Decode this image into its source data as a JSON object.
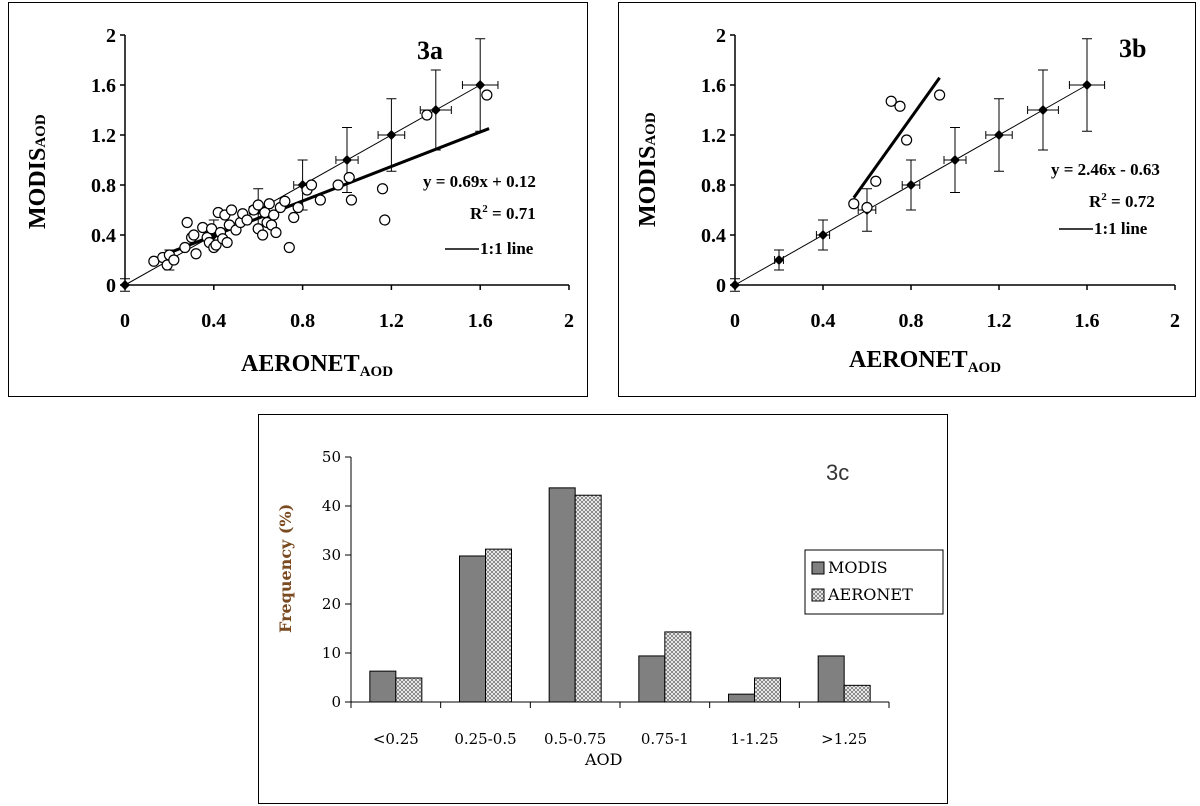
{
  "panel_a": {
    "label": "3a",
    "equation": "y = 0.69x + 0.12",
    "r2_base": "R",
    "r2_sup": "2",
    "r2_rest": " = 0.71",
    "legend_line": "1:1 line",
    "ylabel_main": "MODIS",
    "ylabel_sub": "AOD",
    "xlabel_main": "AERONET",
    "xlabel_sub": "AOD"
  },
  "panel_b": {
    "label": "3b",
    "equation": "y = 2.46x - 0.63",
    "r2_base": "R",
    "r2_sup": "2",
    "r2_rest": " = 0.72",
    "legend_line": "1:1 line",
    "ylabel_main": "MODIS",
    "ylabel_sub": "AOD",
    "xlabel_main": "AERONET",
    "xlabel_sub": "AOD"
  },
  "panel_c": {
    "label": "3c",
    "ylabel": "Frequency (%)",
    "xlabel": "AOD",
    "legend": [
      "MODIS",
      "AERONET"
    ]
  },
  "colors": {
    "modis_bar": "#808080",
    "aeronet_bar": "#d8d8d8",
    "ylabel_c": "#7a4a20"
  },
  "chart_data": [
    {
      "type": "scatter",
      "title": "3a",
      "xlabel": "AERONET AOD",
      "ylabel": "MODIS AOD",
      "xlim": [
        0,
        2
      ],
      "ylim": [
        0,
        2
      ],
      "xticks": [
        "0",
        "0.4",
        "0.8",
        "1.2",
        "1.6",
        "2"
      ],
      "yticks": [
        "0",
        "0.4",
        "0.8",
        "1.2",
        "1.6",
        "2"
      ],
      "series": [
        {
          "name": "1:1 line",
          "kind": "line_with_error_bars",
          "points": [
            [
              0,
              0
            ],
            [
              0.2,
              0.2
            ],
            [
              0.4,
              0.4
            ],
            [
              0.6,
              0.6
            ],
            [
              0.8,
              0.8
            ],
            [
              1.0,
              1.0
            ],
            [
              1.2,
              1.2
            ],
            [
              1.4,
              1.4
            ],
            [
              1.6,
              1.6
            ]
          ],
          "yerr": [
            0.05,
            0.08,
            0.12,
            0.17,
            0.2,
            0.26,
            0.29,
            0.32,
            0.37
          ],
          "xerr": [
            0,
            0.02,
            0.03,
            0.04,
            0.04,
            0.05,
            0.06,
            0.07,
            0.08
          ]
        },
        {
          "name": "y = 0.69x + 0.12",
          "kind": "regression",
          "slope": 0.69,
          "intercept": 0.12,
          "x_range": [
            0.16,
            1.64
          ]
        },
        {
          "kind": "scatter_open",
          "points": [
            [
              0.13,
              0.19
            ],
            [
              0.17,
              0.22
            ],
            [
              0.19,
              0.16
            ],
            [
              0.2,
              0.24
            ],
            [
              0.22,
              0.2
            ],
            [
              0.27,
              0.3
            ],
            [
              0.28,
              0.5
            ],
            [
              0.3,
              0.38
            ],
            [
              0.31,
              0.4
            ],
            [
              0.32,
              0.25
            ],
            [
              0.35,
              0.46
            ],
            [
              0.37,
              0.38
            ],
            [
              0.38,
              0.34
            ],
            [
              0.39,
              0.45
            ],
            [
              0.4,
              0.3
            ],
            [
              0.41,
              0.32
            ],
            [
              0.42,
              0.58
            ],
            [
              0.43,
              0.42
            ],
            [
              0.44,
              0.37
            ],
            [
              0.45,
              0.56
            ],
            [
              0.46,
              0.34
            ],
            [
              0.47,
              0.48
            ],
            [
              0.48,
              0.6
            ],
            [
              0.5,
              0.44
            ],
            [
              0.52,
              0.5
            ],
            [
              0.53,
              0.57
            ],
            [
              0.55,
              0.52
            ],
            [
              0.58,
              0.6
            ],
            [
              0.6,
              0.45
            ],
            [
              0.6,
              0.64
            ],
            [
              0.62,
              0.4
            ],
            [
              0.63,
              0.58
            ],
            [
              0.64,
              0.5
            ],
            [
              0.65,
              0.65
            ],
            [
              0.66,
              0.48
            ],
            [
              0.67,
              0.56
            ],
            [
              0.68,
              0.42
            ],
            [
              0.7,
              0.62
            ],
            [
              0.72,
              0.67
            ],
            [
              0.74,
              0.3
            ],
            [
              0.76,
              0.54
            ],
            [
              0.78,
              0.62
            ],
            [
              0.82,
              0.76
            ],
            [
              0.84,
              0.8
            ],
            [
              0.88,
              0.68
            ],
            [
              0.96,
              0.8
            ],
            [
              1.01,
              0.86
            ],
            [
              1.02,
              0.68
            ],
            [
              1.16,
              0.77
            ],
            [
              1.17,
              0.52
            ],
            [
              1.36,
              1.36
            ],
            [
              1.63,
              1.52
            ]
          ]
        }
      ]
    },
    {
      "type": "scatter",
      "title": "3b",
      "xlabel": "AERONET AOD",
      "ylabel": "MODIS AOD",
      "xlim": [
        0,
        2
      ],
      "ylim": [
        0,
        2
      ],
      "xticks": [
        "0",
        "0.4",
        "0.8",
        "1.2",
        "1.6",
        "2"
      ],
      "yticks": [
        "0",
        "0.4",
        "0.8",
        "1.2",
        "1.6",
        "2"
      ],
      "series": [
        {
          "name": "1:1 line",
          "kind": "line_with_error_bars",
          "points": [
            [
              0,
              0
            ],
            [
              0.2,
              0.2
            ],
            [
              0.4,
              0.4
            ],
            [
              0.6,
              0.6
            ],
            [
              0.8,
              0.8
            ],
            [
              1.0,
              1.0
            ],
            [
              1.2,
              1.2
            ],
            [
              1.4,
              1.4
            ],
            [
              1.6,
              1.6
            ]
          ],
          "yerr": [
            0.05,
            0.08,
            0.12,
            0.17,
            0.2,
            0.26,
            0.29,
            0.32,
            0.37
          ],
          "xerr": [
            0,
            0.02,
            0.03,
            0.04,
            0.04,
            0.05,
            0.06,
            0.07,
            0.08
          ]
        },
        {
          "name": "y = 2.46x - 0.63",
          "kind": "regression",
          "slope": 2.46,
          "intercept": -0.63,
          "x_range": [
            0.54,
            0.93
          ]
        },
        {
          "kind": "scatter_open",
          "points": [
            [
              0.54,
              0.65
            ],
            [
              0.6,
              0.62
            ],
            [
              0.64,
              0.83
            ],
            [
              0.71,
              1.47
            ],
            [
              0.75,
              1.43
            ],
            [
              0.78,
              1.16
            ],
            [
              0.93,
              1.52
            ]
          ]
        }
      ]
    },
    {
      "type": "bar",
      "title": "3c",
      "xlabel": "AOD",
      "ylabel": "Frequency (%)",
      "ylim": [
        0,
        50
      ],
      "yticks": [
        0,
        10,
        20,
        30,
        40,
        50
      ],
      "categories": [
        "<0.25",
        "0.25-0.5",
        "0.5-0.75",
        "0.75-1",
        "1-1.25",
        ">1.25"
      ],
      "series": [
        {
          "name": "MODIS",
          "values": [
            6.3,
            29.8,
            43.7,
            9.4,
            1.6,
            9.4
          ]
        },
        {
          "name": "AERONET",
          "values": [
            4.9,
            31.2,
            42.2,
            14.3,
            4.9,
            3.4
          ]
        }
      ],
      "legend_position": "right"
    }
  ]
}
